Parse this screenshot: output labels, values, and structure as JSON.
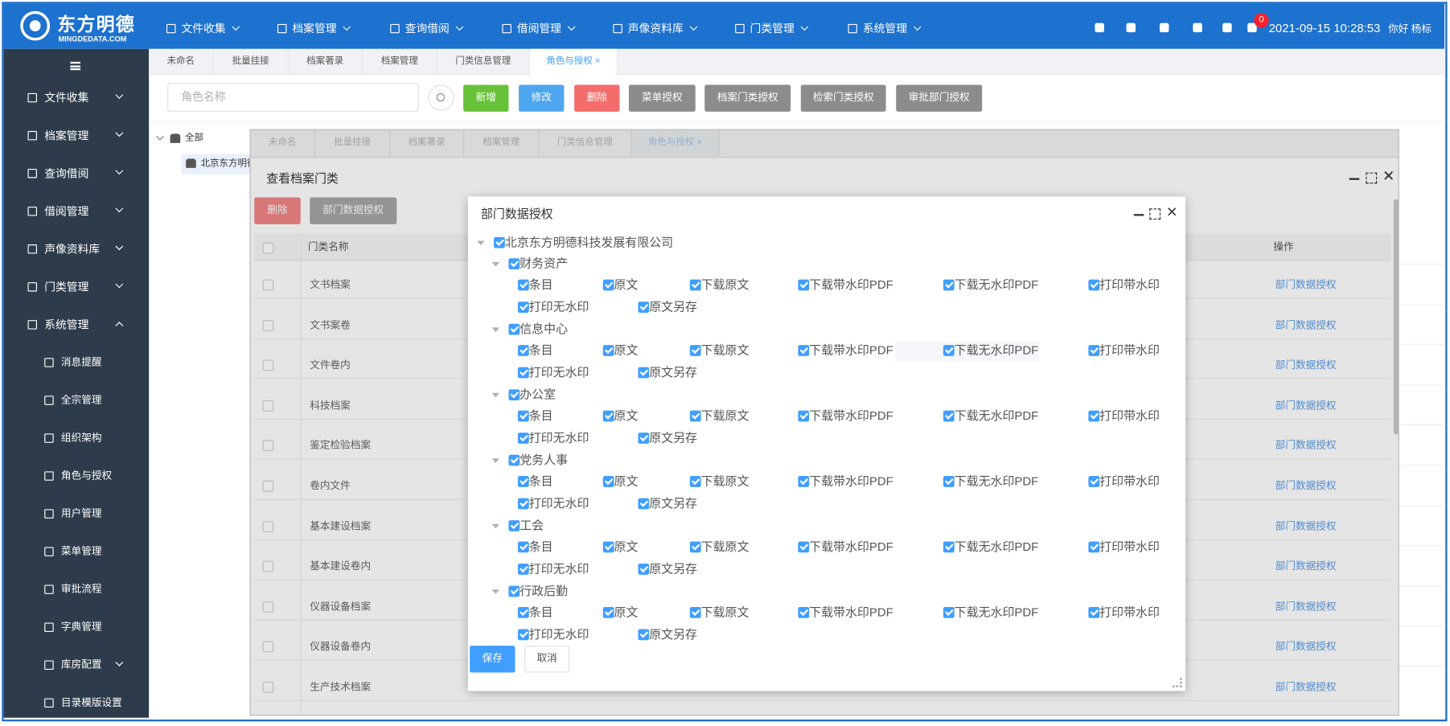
{
  "header": {
    "logo_title": "东方明德",
    "logo_subtitle": "MINGDEDATA.COM",
    "menu": [
      "文件收集",
      "档案管理",
      "查询借阅",
      "借阅管理",
      "声像资料库",
      "门类管理",
      "系统管理"
    ],
    "notification_count": 0,
    "datetime": "2021-09-15 10:28:53",
    "greeting": "你好 杨标"
  },
  "sidebar": {
    "items": [
      "文件收集",
      "档案管理",
      "查询借阅",
      "借阅管理",
      "声像资料库",
      "门类管理",
      "系统管理"
    ],
    "submenu": [
      "消息提醒",
      "全宗管理",
      "组织架构",
      "角色与授权",
      "用户管理",
      "菜单管理",
      "审批流程",
      "字典管理",
      "库房配置",
      "目录模版设置"
    ]
  },
  "tabs": [
    "未命名",
    "批量挂接",
    "档案著录",
    "档案管理",
    "门类信息管理",
    "角色与授权"
  ],
  "toolbar": {
    "search_placeholder": "角色名称",
    "buttons": [
      "新增",
      "修改",
      "删除",
      "菜单授权",
      "档案门类授权",
      "检索门类授权",
      "审批部门授权"
    ]
  },
  "tree": {
    "root": "全部",
    "children": [
      "北京东方明德"
    ]
  },
  "layer": {
    "title": "查看档案门类",
    "buttons": [
      "删除",
      "部门数据授权"
    ],
    "columns": [
      "门类名称",
      "操作"
    ],
    "rows": [
      "文书档案",
      "文书案卷",
      "文件卷内",
      "科技档案",
      "鉴定检验档案",
      "卷内文件",
      "基本建设档案",
      "基本建设卷内",
      "仪器设备档案",
      "仪器设备卷内",
      "生产技术档案"
    ],
    "row_action": "部门数据授权"
  },
  "dialog": {
    "title": "部门数据授权",
    "root": "北京东方明德科技发展有限公司",
    "departments": [
      "财务资产",
      "信息中心",
      "办公室",
      "党务人事",
      "工会",
      "行政后勤"
    ],
    "permissions": [
      "条目",
      "原文",
      "下载原文",
      "下载带水印PDF",
      "下载无水印PDF",
      "打印带水印",
      "打印无水印",
      "原文另存"
    ],
    "buttons": [
      "保存",
      "取消"
    ]
  }
}
